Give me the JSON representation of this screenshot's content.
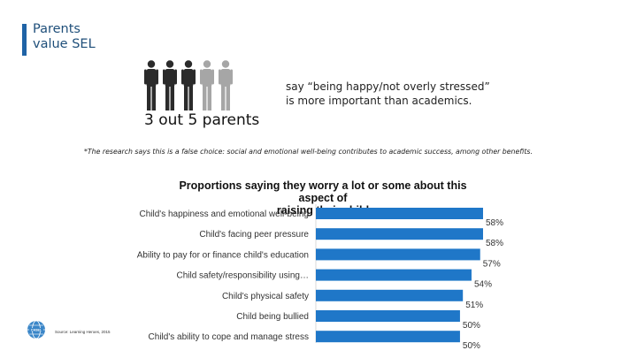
{
  "slide": {
    "title_line1": "Parents",
    "title_line2": "value SEL"
  },
  "stat": {
    "caption": "3 out 5 parents",
    "text_line1": "say “being happy/not overly stressed”",
    "text_line2": "is more important than academics.",
    "highlighted_figures": 3,
    "total_figures": 5
  },
  "footnote": "*The research says this is a false choice: social and emotional well-being contributes to academic success, among other benefits.",
  "source": "Source: Learning Heroes, 2015",
  "colors": {
    "accent": "#1f63a6",
    "title_text": "#1f4f7a",
    "bar": "#1f77c8",
    "figure_dark": "#2b2b2b",
    "figure_light": "#a6a6a6",
    "logo": "#3a86c8"
  },
  "logo_icon": "casel-globe-icon",
  "chart_data": {
    "type": "bar",
    "orientation": "horizontal",
    "title_line1": "Proportions saying they worry a lot or some about this aspect of",
    "title_line2": "raising their child",
    "categories": [
      "Child's happiness and emotional well-being",
      "Child's facing peer pressure",
      "Ability to pay for or finance child's education",
      "Child safety/responsibility using…",
      "Child's physical safety",
      "Child being bullied",
      "Child's ability to cope and manage stress"
    ],
    "values": [
      58,
      58,
      57,
      54,
      51,
      50,
      50
    ],
    "value_labels": [
      "58%",
      "58%",
      "57%",
      "54%",
      "51%",
      "50%",
      "50%"
    ],
    "xlim": [
      0,
      60
    ],
    "grid": false,
    "legend": "none"
  }
}
